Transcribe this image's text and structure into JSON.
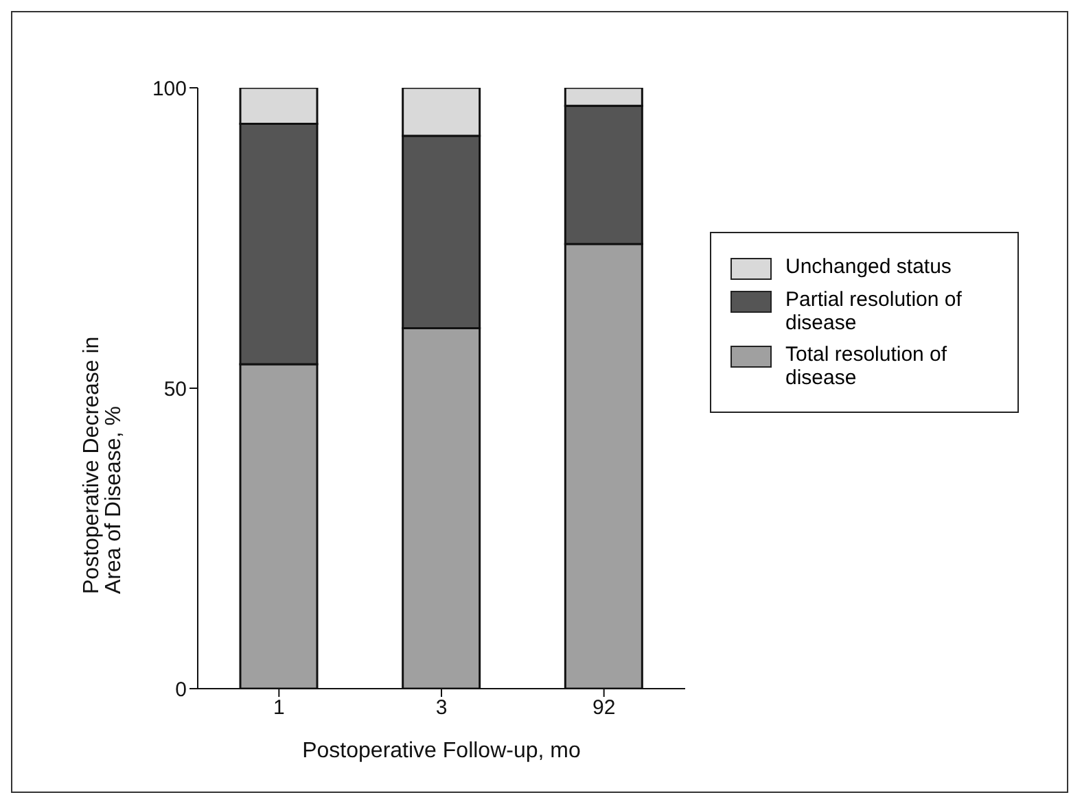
{
  "chart_data": {
    "type": "bar",
    "stacked": true,
    "xlabel": "Postoperative Follow-up, mo",
    "ylabel": "Postoperative Decrease in Area of Disease, %",
    "categories": [
      "1",
      "3",
      "92"
    ],
    "series": [
      {
        "name": "Total resolution of disease",
        "color": "#a0a0a0",
        "values": [
          54,
          60,
          74
        ]
      },
      {
        "name": "Partial resolution of disease",
        "color": "#555555",
        "values": [
          40,
          32,
          23
        ]
      },
      {
        "name": "Unchanged status",
        "color": "#d9d9d9",
        "values": [
          6,
          8,
          3
        ]
      }
    ],
    "ylim": [
      0,
      100
    ],
    "yticks": [
      0,
      50,
      100
    ],
    "grid": false,
    "legend": "right"
  }
}
